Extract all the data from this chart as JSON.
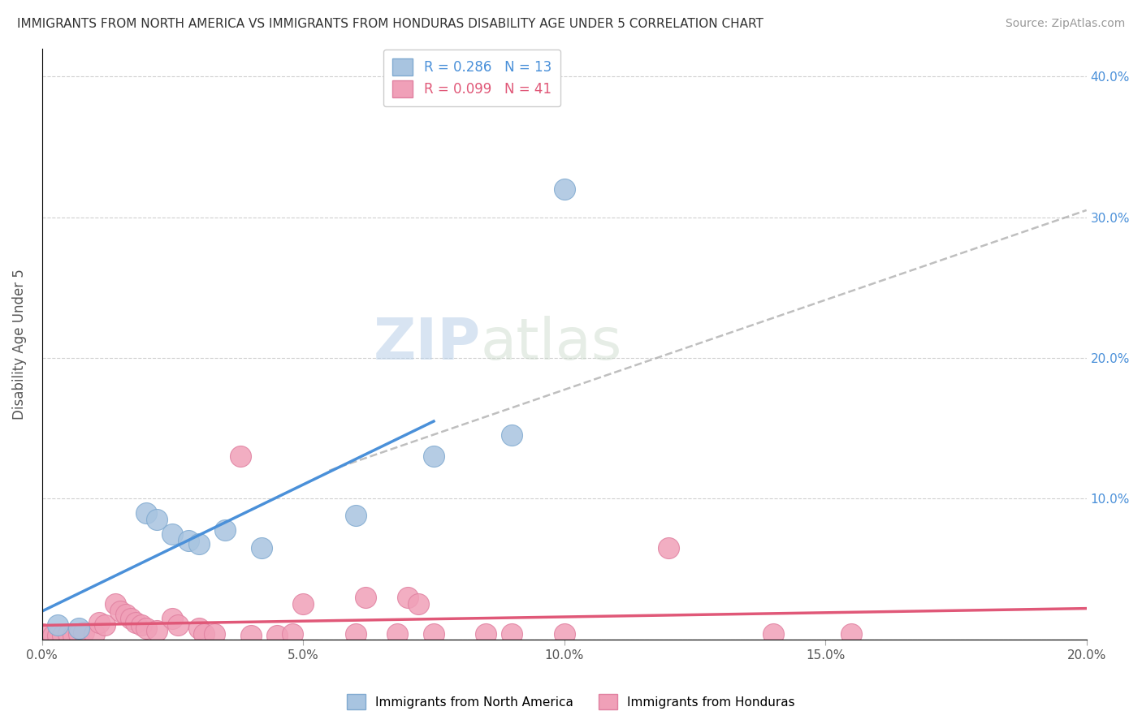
{
  "title": "IMMIGRANTS FROM NORTH AMERICA VS IMMIGRANTS FROM HONDURAS DISABILITY AGE UNDER 5 CORRELATION CHART",
  "source": "Source: ZipAtlas.com",
  "ylabel": "Disability Age Under 5",
  "xlim": [
    0.0,
    0.2
  ],
  "ylim": [
    0.0,
    0.42
  ],
  "yticks": [
    0.0,
    0.1,
    0.2,
    0.3,
    0.4
  ],
  "xticks": [
    0.0,
    0.05,
    0.1,
    0.15,
    0.2
  ],
  "xtick_labels": [
    "0.0%",
    "5.0%",
    "10.0%",
    "15.0%",
    "20.0%"
  ],
  "ytick_labels": [
    "",
    "10.0%",
    "20.0%",
    "30.0%",
    "40.0%"
  ],
  "legend_r_blue": "R = 0.286",
  "legend_n_blue": "N = 13",
  "legend_r_pink": "R = 0.099",
  "legend_n_pink": "N = 41",
  "blue_color": "#a8c4e0",
  "pink_color": "#f0a0b8",
  "blue_line_color": "#4a90d9",
  "pink_line_color": "#e05878",
  "blue_scatter": [
    [
      0.003,
      0.01
    ],
    [
      0.007,
      0.008
    ],
    [
      0.02,
      0.09
    ],
    [
      0.022,
      0.085
    ],
    [
      0.025,
      0.075
    ],
    [
      0.028,
      0.07
    ],
    [
      0.03,
      0.068
    ],
    [
      0.035,
      0.078
    ],
    [
      0.042,
      0.065
    ],
    [
      0.06,
      0.088
    ],
    [
      0.075,
      0.13
    ],
    [
      0.09,
      0.145
    ],
    [
      0.1,
      0.32
    ]
  ],
  "pink_scatter": [
    [
      0.0,
      0.004
    ],
    [
      0.002,
      0.003
    ],
    [
      0.003,
      0.003
    ],
    [
      0.004,
      0.003
    ],
    [
      0.005,
      0.004
    ],
    [
      0.006,
      0.003
    ],
    [
      0.007,
      0.004
    ],
    [
      0.008,
      0.005
    ],
    [
      0.01,
      0.004
    ],
    [
      0.011,
      0.012
    ],
    [
      0.012,
      0.01
    ],
    [
      0.014,
      0.025
    ],
    [
      0.015,
      0.02
    ],
    [
      0.016,
      0.018
    ],
    [
      0.017,
      0.015
    ],
    [
      0.018,
      0.012
    ],
    [
      0.019,
      0.01
    ],
    [
      0.02,
      0.008
    ],
    [
      0.022,
      0.006
    ],
    [
      0.025,
      0.015
    ],
    [
      0.026,
      0.01
    ],
    [
      0.03,
      0.008
    ],
    [
      0.031,
      0.004
    ],
    [
      0.033,
      0.004
    ],
    [
      0.038,
      0.13
    ],
    [
      0.04,
      0.003
    ],
    [
      0.045,
      0.003
    ],
    [
      0.048,
      0.004
    ],
    [
      0.05,
      0.025
    ],
    [
      0.06,
      0.004
    ],
    [
      0.062,
      0.03
    ],
    [
      0.068,
      0.004
    ],
    [
      0.07,
      0.03
    ],
    [
      0.072,
      0.025
    ],
    [
      0.075,
      0.004
    ],
    [
      0.085,
      0.004
    ],
    [
      0.09,
      0.004
    ],
    [
      0.1,
      0.004
    ],
    [
      0.12,
      0.065
    ],
    [
      0.14,
      0.004
    ],
    [
      0.155,
      0.004
    ]
  ],
  "blue_line": [
    [
      0.0,
      0.02
    ],
    [
      0.075,
      0.155
    ]
  ],
  "dashed_line": [
    [
      0.055,
      0.12
    ],
    [
      0.2,
      0.305
    ]
  ],
  "pink_line": [
    [
      0.0,
      0.01
    ],
    [
      0.2,
      0.022
    ]
  ],
  "watermark_zip": "ZIP",
  "watermark_atlas": "atlas",
  "background_color": "#ffffff",
  "grid_color": "#d0d0d0"
}
